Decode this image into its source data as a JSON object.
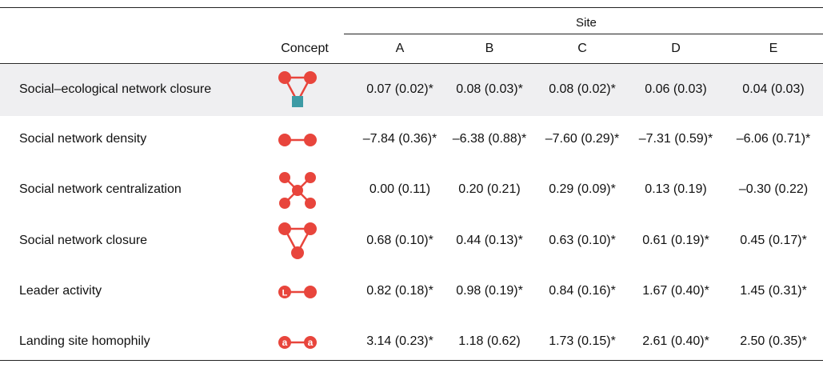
{
  "header": {
    "site_label": "Site",
    "concept_label": "Concept",
    "sites": [
      "A",
      "B",
      "C",
      "D",
      "E"
    ]
  },
  "rows": [
    {
      "metric": "Social–ecological network closure",
      "icon": "social-ecological-closure-icon",
      "values": [
        "0.07 (0.02)*",
        "0.08 (0.03)*",
        "0.08 (0.02)*",
        "0.06 (0.03)",
        "0.04 (0.03)"
      ]
    },
    {
      "metric": "Social network density",
      "icon": "network-density-icon",
      "values": [
        "–7.84 (0.36)*",
        "–6.38 (0.88)*",
        "–7.60 (0.29)*",
        "–7.31 (0.59)*",
        "–6.06 (0.71)*"
      ]
    },
    {
      "metric": "Social network centralization",
      "icon": "network-centralization-icon",
      "values": [
        "0.00 (0.11)",
        "0.20 (0.21)",
        "0.29 (0.09)*",
        "0.13 (0.19)",
        "–0.30 (0.22)"
      ]
    },
    {
      "metric": "Social network closure",
      "icon": "network-closure-icon",
      "values": [
        "0.68 (0.10)*",
        "0.44 (0.13)*",
        "0.63 (0.10)*",
        "0.61 (0.19)*",
        "0.45 (0.17)*"
      ]
    },
    {
      "metric": "Leader activity",
      "icon": "leader-activity-icon",
      "node_letter": "L",
      "values": [
        "0.82 (0.18)*",
        "0.98 (0.19)*",
        "0.84 (0.16)*",
        "1.67 (0.40)*",
        "1.45 (0.31)*"
      ]
    },
    {
      "metric": "Landing site homophily",
      "icon": "homophily-icon",
      "node_letters": [
        "a",
        "a"
      ],
      "values": [
        "3.14 (0.23)*",
        "1.18 (0.62)",
        "1.73 (0.15)*",
        "2.61 (0.40)*",
        "2.50 (0.35)*"
      ]
    }
  ],
  "colors": {
    "node": "#e8453c",
    "resource": "#3d9ba5",
    "shade": "#efeff1"
  }
}
